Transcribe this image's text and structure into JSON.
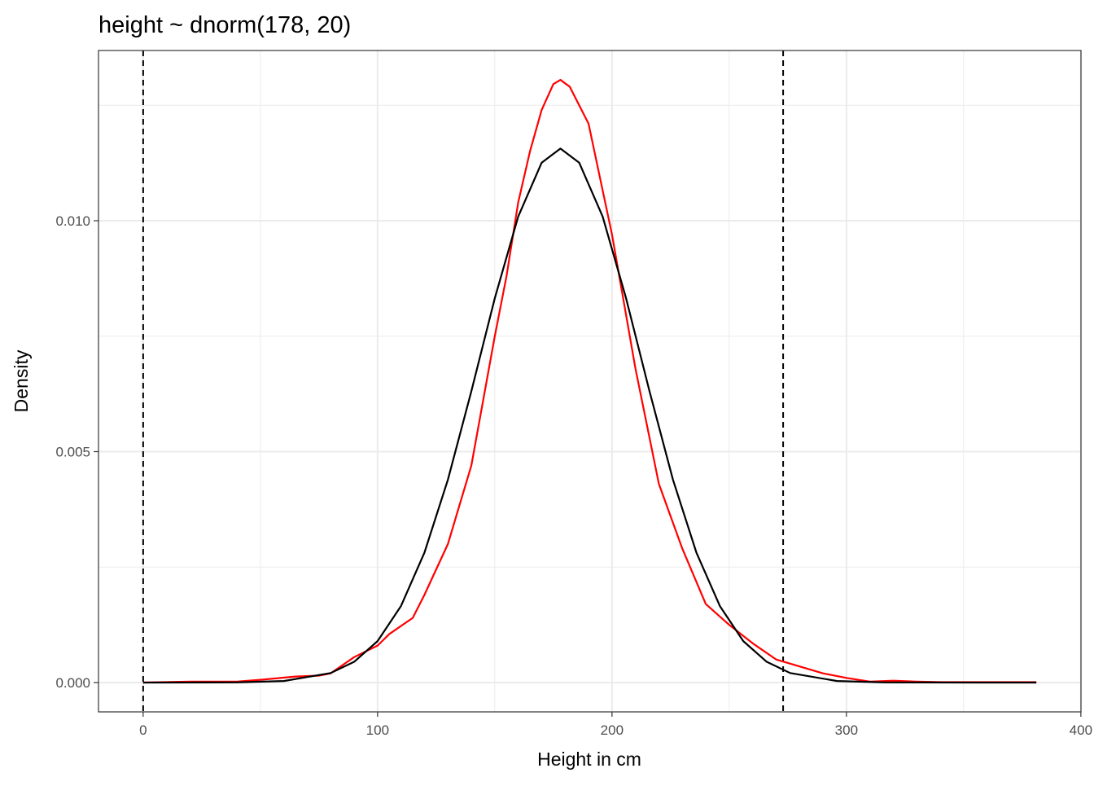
{
  "chart_data": {
    "type": "line",
    "title": "height ~ dnorm(178, 20)",
    "x_label": "Height in cm",
    "y_label": "Density",
    "xlim": [
      -19.05,
      400.05
    ],
    "ylim": [
      -0.000635,
      0.013686
    ],
    "xticks": [
      0,
      100,
      200,
      300,
      400
    ],
    "yticks": [
      {
        "value": 0,
        "label": "0.000"
      },
      {
        "value": 0.005,
        "label": "0.005"
      },
      {
        "value": 0.01,
        "label": "0.010"
      }
    ],
    "x_minor_ticks": [
      50,
      150,
      250,
      350
    ],
    "y_minor_ticks": [
      0.0025,
      0.0075,
      0.0125
    ],
    "grid": true,
    "vlines": [
      0,
      273
    ],
    "series": [
      {
        "color": "#ff0000",
        "x": [
          0,
          20,
          40,
          50,
          65,
          75,
          80,
          90,
          100,
          105,
          115,
          120,
          130,
          140,
          150,
          155,
          160,
          165,
          170,
          175,
          178,
          182,
          190,
          200,
          210,
          220,
          230,
          240,
          250,
          260,
          270,
          280,
          290,
          300,
          310,
          320,
          330,
          340,
          381
        ],
        "values": [
          0,
          2e-05,
          2e-05,
          6e-05,
          0.00013,
          0.00015,
          0.0002,
          0.00055,
          0.0008,
          0.00105,
          0.0014,
          0.0019,
          0.003,
          0.0047,
          0.0075,
          0.0088,
          0.0104,
          0.0115,
          0.0124,
          0.01296,
          0.01305,
          0.0129,
          0.0121,
          0.0097,
          0.0068,
          0.0043,
          0.0029,
          0.0017,
          0.00125,
          0.00085,
          0.0005,
          0.00035,
          0.0002,
          0.0001,
          2e-05,
          4e-05,
          2e-05,
          1e-05,
          1e-05
        ]
      },
      {
        "color": "#000000",
        "x": [
          0,
          40,
          60,
          80,
          90,
          100,
          110,
          120,
          130,
          140,
          150,
          160,
          170,
          178,
          186,
          196,
          206,
          216,
          226,
          236,
          246,
          256,
          266,
          276,
          296,
          316,
          356,
          381
        ],
        "values": [
          0,
          3.9e-06,
          3.33e-05,
          0.000206,
          0.000449,
          0.000897,
          0.001658,
          0.002815,
          0.004393,
          0.006308,
          0.008321,
          0.010092,
          0.011257,
          0.011563,
          0.011257,
          0.010092,
          0.008321,
          0.006308,
          0.004393,
          0.002815,
          0.001658,
          0.000897,
          0.000449,
          0.000206,
          3.33e-05,
          3.9e-06,
          0,
          0
        ]
      }
    ]
  }
}
